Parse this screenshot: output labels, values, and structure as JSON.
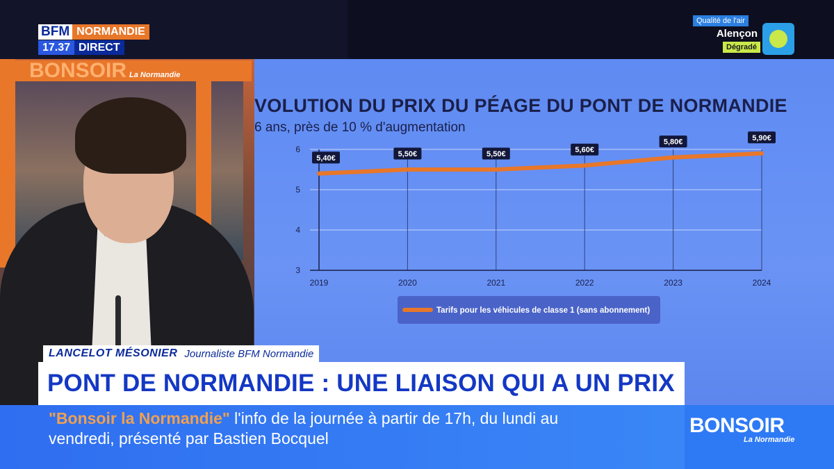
{
  "channel": {
    "brand": "BFM",
    "region": "NORMANDIE",
    "time": "17.37",
    "live_label": "DIRECT"
  },
  "air_quality": {
    "title": "Qualité de l'air",
    "city": "Alençon",
    "status": "Dégradé",
    "icon": "air-quality-icon",
    "status_color": "#c9e84a"
  },
  "studio_logo": {
    "main": "BONSOIR",
    "sub": "La Normandie"
  },
  "chart_data": {
    "type": "line",
    "title": "VOLUTION DU PRIX DU PÉAGE DU PONT DE NORMANDIE",
    "subtitle": "6 ans, près de 10 % d'augmentation",
    "x": [
      "2019",
      "2020",
      "2021",
      "2022",
      "2023",
      "2024"
    ],
    "series": [
      {
        "name": "Tarifs pour les véhicules de classe 1 (sans abonnement)",
        "values": [
          5.4,
          5.5,
          5.5,
          5.6,
          5.8,
          5.9
        ],
        "labels": [
          "5,40€",
          "5,50€",
          "5,50€",
          "5,60€",
          "5,80€",
          "5,90€"
        ],
        "color": "#e8772a"
      }
    ],
    "ylim": [
      3,
      6
    ],
    "yticks": [
      "3",
      "4",
      "5",
      "6"
    ],
    "xlabel": "",
    "ylabel": "",
    "grid": true,
    "legend_position": "bottom"
  },
  "lower_third": {
    "name": "LANCELOT MÉSONIER",
    "role": "Journaliste BFM Normandie",
    "headline": "PONT DE NORMANDIE : UNE LIAISON QUI A UN PRIX"
  },
  "ticker": {
    "show": "\"Bonsoir la Normandie\"",
    "text": " l'info de la journée à partir de 17h, du lundi au vendredi, présenté par Bastien Bocquel"
  },
  "show_logo": {
    "main": "BONSOIR",
    "sub": "La Normandie"
  },
  "colors": {
    "accent": "#e8772a",
    "brand_blue": "#0a2a9a",
    "screen_blue": "#6a93f5",
    "chart_navy": "#1a1f4a"
  }
}
